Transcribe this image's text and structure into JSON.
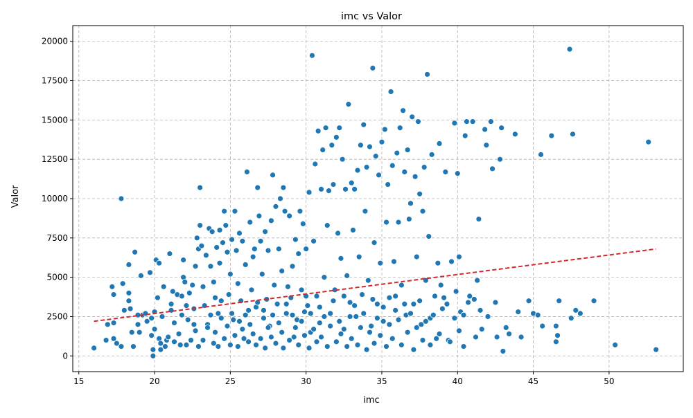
{
  "chart_data": {
    "type": "scatter",
    "title": "imc vs Valor",
    "xlabel": "imc",
    "ylabel": "Valor",
    "xlim": [
      14.6,
      54.9
    ],
    "ylim": [
      -1000,
      21000
    ],
    "xticks": [
      "15",
      "20",
      "25",
      "30",
      "35",
      "40",
      "45",
      "50"
    ],
    "yticks": [
      "0",
      "2500",
      "5000",
      "7500",
      "10000",
      "12500",
      "15000",
      "17500",
      "20000"
    ],
    "grid": true,
    "colors": {
      "points": "#1f77b4",
      "trend": "#d62728"
    },
    "trend_line": {
      "x": [
        16.0,
        53.1
      ],
      "y": [
        2200,
        6800
      ]
    },
    "points": [
      [
        16.0,
        500
      ],
      [
        16.8,
        1000
      ],
      [
        16.9,
        2000
      ],
      [
        17.2,
        4400
      ],
      [
        17.3,
        3900
      ],
      [
        17.3,
        2100
      ],
      [
        17.3,
        1100
      ],
      [
        17.5,
        800
      ],
      [
        17.8,
        600
      ],
      [
        17.8,
        10000
      ],
      [
        17.9,
        4600
      ],
      [
        18.0,
        2900
      ],
      [
        18.3,
        5800
      ],
      [
        18.3,
        4000
      ],
      [
        18.3,
        3500
      ],
      [
        18.4,
        3000
      ],
      [
        18.5,
        1500
      ],
      [
        18.6,
        600
      ],
      [
        18.7,
        6600
      ],
      [
        18.9,
        2000
      ],
      [
        19.0,
        1500
      ],
      [
        19.1,
        5100
      ],
      [
        19.2,
        2600
      ],
      [
        19.5,
        2200
      ],
      [
        19.7,
        5300
      ],
      [
        19.8,
        2400
      ],
      [
        19.8,
        1300
      ],
      [
        19.9,
        400
      ],
      [
        19.9,
        0
      ],
      [
        20.0,
        2800
      ],
      [
        20.0,
        1700
      ],
      [
        20.1,
        6100
      ],
      [
        20.2,
        3700
      ],
      [
        20.3,
        5900
      ],
      [
        20.3,
        1100
      ],
      [
        20.4,
        800
      ],
      [
        20.5,
        2500
      ],
      [
        20.6,
        4400
      ],
      [
        20.7,
        600
      ],
      [
        20.8,
        1000
      ],
      [
        21.0,
        6500
      ],
      [
        21.1,
        3300
      ],
      [
        21.1,
        2900
      ],
      [
        21.2,
        4100
      ],
      [
        21.3,
        2100
      ],
      [
        21.5,
        3900
      ],
      [
        21.6,
        1400
      ],
      [
        21.7,
        700
      ],
      [
        21.8,
        3800
      ],
      [
        21.9,
        5000
      ],
      [
        21.9,
        6100
      ],
      [
        22.0,
        4700
      ],
      [
        22.1,
        3200
      ],
      [
        22.2,
        2300
      ],
      [
        22.3,
        4000
      ],
      [
        22.4,
        1000
      ],
      [
        22.5,
        4500
      ],
      [
        22.6,
        3000
      ],
      [
        22.7,
        1600
      ],
      [
        22.7,
        5700
      ],
      [
        22.8,
        7500
      ],
      [
        22.9,
        6800
      ],
      [
        23.0,
        10700
      ],
      [
        23.0,
        8300
      ],
      [
        23.1,
        7000
      ],
      [
        23.2,
        4400
      ],
      [
        23.3,
        3200
      ],
      [
        23.4,
        6400
      ],
      [
        23.5,
        2000
      ],
      [
        23.6,
        8100
      ],
      [
        23.7,
        5700
      ],
      [
        23.8,
        7900
      ],
      [
        23.9,
        4700
      ],
      [
        24.0,
        3700
      ],
      [
        24.1,
        6900
      ],
      [
        24.2,
        2700
      ],
      [
        24.3,
        5900
      ],
      [
        24.3,
        8000
      ],
      [
        24.4,
        3500
      ],
      [
        24.5,
        7200
      ],
      [
        24.6,
        9200
      ],
      [
        24.7,
        8300
      ],
      [
        24.8,
        6600
      ],
      [
        24.9,
        3900
      ],
      [
        25.0,
        5200
      ],
      [
        25.1,
        7400
      ],
      [
        25.2,
        2300
      ],
      [
        25.3,
        9200
      ],
      [
        25.4,
        6700
      ],
      [
        25.5,
        4600
      ],
      [
        25.6,
        7800
      ],
      [
        25.7,
        3500
      ],
      [
        25.8,
        7300
      ],
      [
        25.9,
        1100
      ],
      [
        26.0,
        5800
      ],
      [
        26.1,
        11700
      ],
      [
        26.2,
        2900
      ],
      [
        26.3,
        8500
      ],
      [
        26.4,
        4200
      ],
      [
        26.5,
        6300
      ],
      [
        26.6,
        6800
      ],
      [
        26.7,
        3100
      ],
      [
        26.8,
        10700
      ],
      [
        26.9,
        8900
      ],
      [
        27.0,
        7300
      ],
      [
        27.1,
        5200
      ],
      [
        27.2,
        2400
      ],
      [
        27.3,
        7900
      ],
      [
        27.4,
        3600
      ],
      [
        27.5,
        6700
      ],
      [
        27.6,
        1900
      ],
      [
        27.7,
        8600
      ],
      [
        27.8,
        11500
      ],
      [
        27.9,
        4500
      ],
      [
        28.0,
        9500
      ],
      [
        28.1,
        3300
      ],
      [
        28.2,
        6800
      ],
      [
        28.3,
        10000
      ],
      [
        28.4,
        5400
      ],
      [
        28.5,
        10700
      ],
      [
        28.6,
        9200
      ],
      [
        28.7,
        2700
      ],
      [
        28.8,
        4400
      ],
      [
        28.9,
        8900
      ],
      [
        29.0,
        3700
      ],
      [
        29.1,
        5700
      ],
      [
        29.2,
        1200
      ],
      [
        29.3,
        7400
      ],
      [
        29.4,
        2300
      ],
      [
        29.5,
        6500
      ],
      [
        29.6,
        9200
      ],
      [
        29.7,
        4200
      ],
      [
        29.8,
        8400
      ],
      [
        29.9,
        2800
      ],
      [
        30.0,
        6800
      ],
      [
        30.1,
        3200
      ],
      [
        30.2,
        10400
      ],
      [
        30.3,
        1500
      ],
      [
        30.4,
        19100
      ],
      [
        30.5,
        7300
      ],
      [
        30.6,
        12200
      ],
      [
        30.7,
        3800
      ],
      [
        30.8,
        14300
      ],
      [
        30.9,
        2100
      ],
      [
        31.0,
        10600
      ],
      [
        31.1,
        13100
      ],
      [
        31.2,
        5000
      ],
      [
        31.3,
        14500
      ],
      [
        31.4,
        8300
      ],
      [
        31.5,
        10500
      ],
      [
        31.6,
        2700
      ],
      [
        31.7,
        13400
      ],
      [
        31.8,
        10900
      ],
      [
        31.9,
        4200
      ],
      [
        32.0,
        13900
      ],
      [
        32.1,
        7800
      ],
      [
        32.2,
        14500
      ],
      [
        32.3,
        6200
      ],
      [
        32.4,
        12500
      ],
      [
        32.5,
        1700
      ],
      [
        32.6,
        10600
      ],
      [
        32.7,
        5100
      ],
      [
        32.8,
        16000
      ],
      [
        32.9,
        3400
      ],
      [
        33.0,
        11000
      ],
      [
        33.1,
        8000
      ],
      [
        33.2,
        10600
      ],
      [
        33.3,
        2500
      ],
      [
        33.4,
        11800
      ],
      [
        33.5,
        6300
      ],
      [
        33.6,
        13400
      ],
      [
        33.7,
        3900
      ],
      [
        33.8,
        14700
      ],
      [
        33.9,
        9200
      ],
      [
        34.0,
        12000
      ],
      [
        34.1,
        4800
      ],
      [
        34.2,
        13300
      ],
      [
        34.3,
        1900
      ],
      [
        34.4,
        18300
      ],
      [
        34.5,
        7200
      ],
      [
        34.6,
        12700
      ],
      [
        34.7,
        3300
      ],
      [
        34.8,
        11500
      ],
      [
        34.9,
        5900
      ],
      [
        35.0,
        13600
      ],
      [
        35.1,
        2200
      ],
      [
        35.2,
        14400
      ],
      [
        35.3,
        8500
      ],
      [
        35.4,
        10900
      ],
      [
        35.5,
        3700
      ],
      [
        35.6,
        16800
      ],
      [
        35.7,
        12100
      ],
      [
        35.8,
        6000
      ],
      [
        35.9,
        2900
      ],
      [
        36.0,
        12900
      ],
      [
        36.1,
        8500
      ],
      [
        36.2,
        14500
      ],
      [
        36.3,
        4500
      ],
      [
        36.4,
        15600
      ],
      [
        36.5,
        11700
      ],
      [
        36.6,
        2600
      ],
      [
        36.7,
        13100
      ],
      [
        36.8,
        8700
      ],
      [
        36.9,
        9700
      ],
      [
        37.0,
        15200
      ],
      [
        37.1,
        3300
      ],
      [
        37.2,
        11400
      ],
      [
        37.3,
        6300
      ],
      [
        37.4,
        14900
      ],
      [
        37.5,
        10300
      ],
      [
        37.6,
        2000
      ],
      [
        37.7,
        9200
      ],
      [
        37.8,
        12000
      ],
      [
        37.9,
        4800
      ],
      [
        38.0,
        17900
      ],
      [
        38.1,
        7600
      ],
      [
        38.2,
        2400
      ],
      [
        38.3,
        12800
      ],
      [
        38.5,
        3800
      ],
      [
        38.6,
        1100
      ],
      [
        38.7,
        5900
      ],
      [
        38.8,
        13500
      ],
      [
        38.9,
        4500
      ],
      [
        39.0,
        3000
      ],
      [
        39.2,
        11700
      ],
      [
        39.3,
        3300
      ],
      [
        39.4,
        1000
      ],
      [
        39.6,
        6000
      ],
      [
        39.8,
        14800
      ],
      [
        39.9,
        4100
      ],
      [
        40.0,
        11600
      ],
      [
        40.1,
        6300
      ],
      [
        40.2,
        2800
      ],
      [
        40.4,
        2600
      ],
      [
        40.5,
        14000
      ],
      [
        40.6,
        14900
      ],
      [
        40.8,
        3800
      ],
      [
        41.0,
        14900
      ],
      [
        41.1,
        3600
      ],
      [
        41.3,
        4800
      ],
      [
        41.4,
        8700
      ],
      [
        41.5,
        2900
      ],
      [
        41.6,
        1700
      ],
      [
        41.8,
        14400
      ],
      [
        41.9,
        13400
      ],
      [
        42.0,
        2500
      ],
      [
        42.2,
        14900
      ],
      [
        42.3,
        11900
      ],
      [
        42.5,
        3400
      ],
      [
        42.6,
        1200
      ],
      [
        42.8,
        12500
      ],
      [
        42.9,
        14500
      ],
      [
        43.0,
        300
      ],
      [
        43.2,
        1800
      ],
      [
        43.4,
        1400
      ],
      [
        43.8,
        14100
      ],
      [
        44.0,
        2800
      ],
      [
        44.2,
        1200
      ],
      [
        44.7,
        3500
      ],
      [
        45.0,
        2700
      ],
      [
        45.3,
        2600
      ],
      [
        45.5,
        12800
      ],
      [
        45.6,
        1900
      ],
      [
        46.2,
        14000
      ],
      [
        46.5,
        1900
      ],
      [
        46.5,
        900
      ],
      [
        46.6,
        1300
      ],
      [
        46.7,
        3500
      ],
      [
        47.4,
        19500
      ],
      [
        47.5,
        2400
      ],
      [
        47.6,
        14100
      ],
      [
        47.8,
        2900
      ],
      [
        48.1,
        2700
      ],
      [
        49.0,
        3500
      ],
      [
        50.4,
        700
      ],
      [
        52.6,
        13600
      ],
      [
        53.1,
        400
      ],
      [
        18.9,
        2600
      ],
      [
        19.4,
        2700
      ],
      [
        20.4,
        400
      ],
      [
        20.9,
        1200
      ],
      [
        21.3,
        900
      ],
      [
        21.8,
        2600
      ],
      [
        22.1,
        700
      ],
      [
        22.6,
        2000
      ],
      [
        22.9,
        600
      ],
      [
        23.2,
        1000
      ],
      [
        23.5,
        1800
      ],
      [
        23.7,
        2600
      ],
      [
        23.9,
        800
      ],
      [
        24.0,
        1500
      ],
      [
        24.2,
        600
      ],
      [
        24.4,
        2400
      ],
      [
        24.6,
        1100
      ],
      [
        24.8,
        1900
      ],
      [
        25.0,
        700
      ],
      [
        25.1,
        2700
      ],
      [
        25.3,
        1300
      ],
      [
        25.5,
        600
      ],
      [
        25.6,
        2200
      ],
      [
        25.8,
        1700
      ],
      [
        26.0,
        2600
      ],
      [
        26.2,
        900
      ],
      [
        26.3,
        2000
      ],
      [
        26.5,
        1400
      ],
      [
        26.7,
        700
      ],
      [
        26.8,
        3400
      ],
      [
        27.0,
        1100
      ],
      [
        27.2,
        2900
      ],
      [
        27.3,
        500
      ],
      [
        27.5,
        1800
      ],
      [
        27.7,
        1200
      ],
      [
        27.8,
        2600
      ],
      [
        28.0,
        800
      ],
      [
        28.2,
        2100
      ],
      [
        28.4,
        1500
      ],
      [
        28.5,
        500
      ],
      [
        28.7,
        3300
      ],
      [
        28.9,
        1000
      ],
      [
        29.1,
        2600
      ],
      [
        29.3,
        1800
      ],
      [
        29.5,
        700
      ],
      [
        29.7,
        2200
      ],
      [
        29.9,
        1300
      ],
      [
        30.0,
        3800
      ],
      [
        30.2,
        500
      ],
      [
        30.3,
        2700
      ],
      [
        30.5,
        1700
      ],
      [
        30.7,
        900
      ],
      [
        30.9,
        3100
      ],
      [
        31.0,
        1200
      ],
      [
        31.2,
        2500
      ],
      [
        31.4,
        600
      ],
      [
        31.6,
        1900
      ],
      [
        31.8,
        3500
      ],
      [
        32.0,
        900
      ],
      [
        32.2,
        2200
      ],
      [
        32.3,
        1400
      ],
      [
        32.5,
        3800
      ],
      [
        32.7,
        600
      ],
      [
        32.9,
        2500
      ],
      [
        33.0,
        1100
      ],
      [
        33.2,
        3200
      ],
      [
        33.4,
        700
      ],
      [
        33.6,
        1800
      ],
      [
        33.8,
        2700
      ],
      [
        34.0,
        400
      ],
      [
        34.2,
        1500
      ],
      [
        34.4,
        3600
      ],
      [
        34.5,
        800
      ],
      [
        34.7,
        2400
      ],
      [
        34.9,
        1300
      ],
      [
        35.1,
        3100
      ],
      [
        35.3,
        600
      ],
      [
        35.5,
        2000
      ],
      [
        35.7,
        1100
      ],
      [
        35.9,
        3800
      ],
      [
        36.1,
        2300
      ],
      [
        36.3,
        700
      ],
      [
        36.5,
        3300
      ],
      [
        36.7,
        1500
      ],
      [
        36.9,
        2700
      ],
      [
        37.1,
        400
      ],
      [
        37.3,
        1800
      ],
      [
        37.5,
        3500
      ],
      [
        37.7,
        1000
      ],
      [
        37.9,
        2200
      ],
      [
        38.2,
        700
      ],
      [
        38.4,
        2600
      ],
      [
        38.8,
        1400
      ],
      [
        39.1,
        3700
      ],
      [
        39.5,
        900
      ],
      [
        39.8,
        2400
      ],
      [
        40.1,
        1600
      ],
      [
        40.4,
        600
      ],
      [
        40.7,
        3400
      ],
      [
        41.2,
        1200
      ]
    ]
  }
}
